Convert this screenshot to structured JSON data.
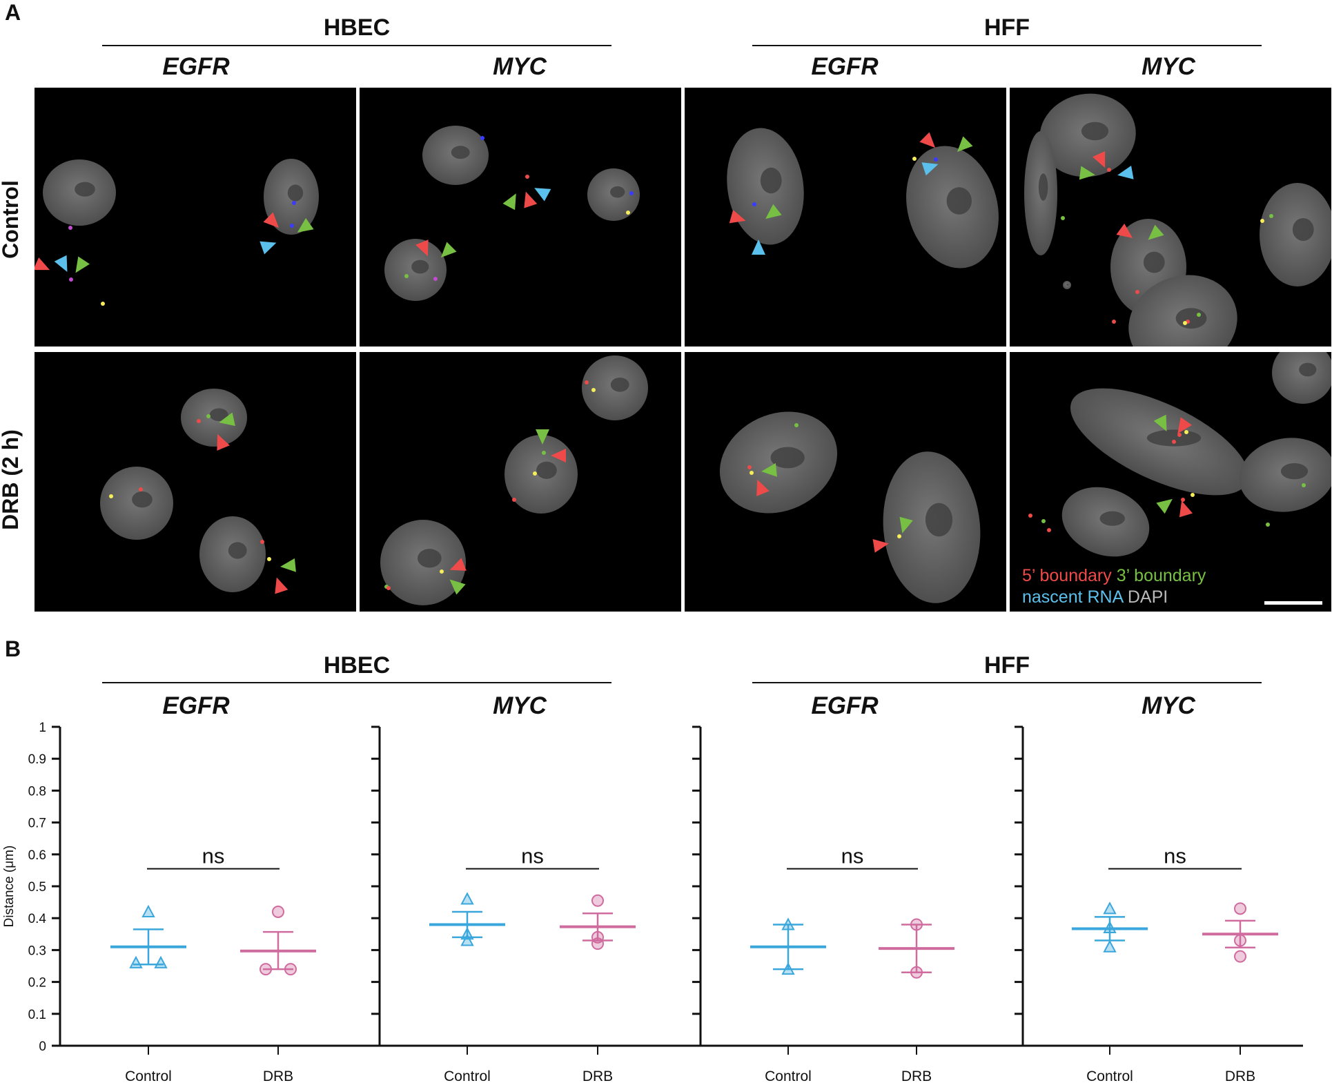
{
  "panel_a": {
    "letter": "A",
    "groups": [
      {
        "title": "HBEC",
        "genes": [
          "EGFR",
          "MYC"
        ]
      },
      {
        "title": "HFF",
        "genes": [
          "EGFR",
          "MYC"
        ]
      }
    ],
    "rows": [
      "Control",
      "DRB (2 h)"
    ],
    "legend": {
      "five_prime": "5’ boundary",
      "three_prime": "3’ boundary",
      "nascent": "nascent RNA",
      "dapi": "DAPI"
    },
    "colors": {
      "five_prime": "#ee4a4a",
      "three_prime": "#77c043",
      "nascent": "#5bc0eb",
      "dapi": "#b9b9b9",
      "nucleus": "#5c5c5c"
    }
  },
  "panel_b": {
    "letter": "B",
    "groups": [
      {
        "title": "HBEC",
        "genes": [
          "EGFR",
          "MYC"
        ]
      },
      {
        "title": "HFF",
        "genes": [
          "EGFR",
          "MYC"
        ]
      }
    ],
    "significance": "ns",
    "colors": {
      "control": "#3aa7dc",
      "drb": "#cf6b9e"
    }
  },
  "chart_data": {
    "type": "scatter",
    "ylabel": "Distance (μm)",
    "ylim": [
      0,
      1
    ],
    "yticks": [
      "0",
      "0.1",
      "0.2",
      "0.3",
      "0.4",
      "0.5",
      "0.6",
      "0.7",
      "0.8",
      "0.9",
      "1"
    ],
    "categories": [
      "Control",
      "DRB"
    ],
    "panels": [
      {
        "group": "HBEC",
        "gene": "EGFR",
        "control": {
          "points": [
            0.42,
            0.26,
            0.26
          ],
          "mean": 0.31,
          "sem": [
            0.255,
            0.365
          ]
        },
        "drb": {
          "points": [
            0.42,
            0.24,
            0.24
          ],
          "mean": 0.297,
          "sem": [
            0.24,
            0.357
          ]
        },
        "significance": "ns"
      },
      {
        "group": "HBEC",
        "gene": "MYC",
        "control": {
          "points": [
            0.46,
            0.35,
            0.33
          ],
          "mean": 0.38,
          "sem": [
            0.34,
            0.42
          ]
        },
        "drb": {
          "points": [
            0.455,
            0.34,
            0.32
          ],
          "mean": 0.373,
          "sem": [
            0.33,
            0.415
          ]
        },
        "significance": "ns"
      },
      {
        "group": "HFF",
        "gene": "EGFR",
        "control": {
          "points": [
            0.38,
            0.24
          ],
          "mean": 0.31,
          "sem": [
            0.24,
            0.38
          ]
        },
        "drb": {
          "points": [
            0.38,
            0.23
          ],
          "mean": 0.305,
          "sem": [
            0.23,
            0.38
          ]
        },
        "significance": "ns"
      },
      {
        "group": "HFF",
        "gene": "MYC",
        "control": {
          "points": [
            0.43,
            0.37,
            0.31
          ],
          "mean": 0.367,
          "sem": [
            0.33,
            0.404
          ]
        },
        "drb": {
          "points": [
            0.43,
            0.33,
            0.28
          ],
          "mean": 0.35,
          "sem": [
            0.308,
            0.392
          ]
        },
        "significance": "ns"
      }
    ]
  }
}
